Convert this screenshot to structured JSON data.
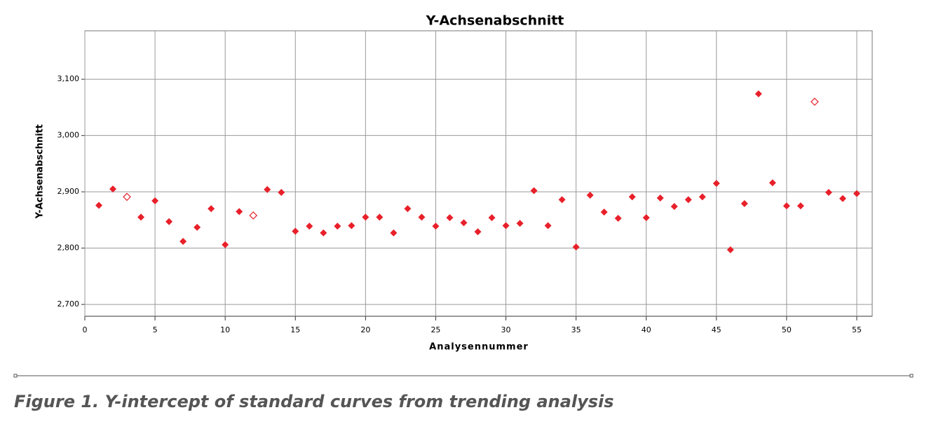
{
  "chart_data": {
    "type": "scatter",
    "title": "Y-Achsenabschnitt",
    "x_label": "Analysennummer",
    "y_label": "Y-Achsenabschnitt",
    "xlim": [
      0,
      56.1
    ],
    "xticks": [
      0,
      5,
      10,
      15,
      20,
      25,
      30,
      35,
      40,
      45,
      50,
      55
    ],
    "ylim": [
      2679,
      3186
    ],
    "yticks": [
      {
        "value": 2700,
        "label": "2,700"
      },
      {
        "value": 2800,
        "label": "2,800"
      },
      {
        "value": 2900,
        "label": "2,900"
      },
      {
        "value": 3000,
        "label": "3,000"
      },
      {
        "value": 3100,
        "label": "3,100"
      }
    ],
    "grid": true,
    "series": [
      {
        "color": "#e8202a",
        "marker": "filled",
        "x": [
          1,
          2,
          4,
          5,
          6,
          7,
          8,
          9,
          10,
          11,
          13,
          14,
          15,
          16,
          17,
          18,
          19,
          20,
          21,
          22,
          23,
          24,
          25,
          26,
          27,
          28,
          29,
          30,
          31,
          32,
          33,
          34,
          35,
          36,
          37,
          38,
          39,
          40,
          41,
          42,
          43,
          44,
          45,
          46,
          47,
          48,
          49,
          50,
          51,
          53,
          54,
          55
        ],
        "values": [
          2876,
          2905,
          2855,
          2884,
          2847,
          2812,
          2837,
          2870,
          2806,
          2865,
          2904,
          2899,
          2830,
          2839,
          2827,
          2839,
          2840,
          2855,
          2855,
          2827,
          2870,
          2855,
          2839,
          2854,
          2845,
          2829,
          2854,
          2840,
          2844,
          2902,
          2840,
          2886,
          2802,
          2894,
          2864,
          2853,
          2891,
          2854,
          2889,
          2874,
          2886,
          2891,
          2915,
          2797,
          2879,
          3074,
          2916,
          2875,
          2875,
          2899,
          2888,
          2897
        ]
      },
      {
        "color": "#e8202a",
        "marker": "open",
        "x": [
          3,
          12,
          52
        ],
        "values": [
          2891,
          2858,
          3060
        ]
      }
    ],
    "caption": "Figure 1. Y-intercept of standard curves from trending analysis"
  }
}
